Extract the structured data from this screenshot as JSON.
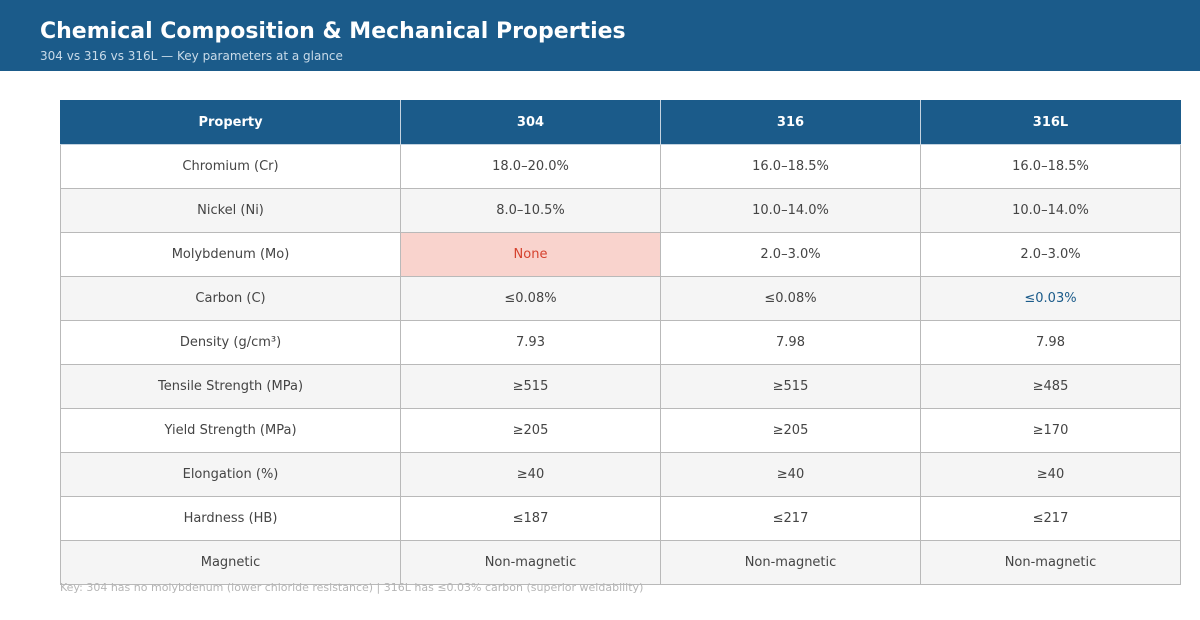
{
  "header": {
    "title": "Chemical Composition & Mechanical Properties",
    "subtitle": "304 vs 316 vs 316L — Key parameters at a glance"
  },
  "colors": {
    "header_bg": "#1b5b8a",
    "highlight_bad_bg": "#f9d3cd",
    "highlight_bad_text": "#d5422e",
    "highlight_good_bg": "#c6e4f3",
    "highlight_good_text": "#1b5b8a",
    "alt_row_bg": "#f5f5f5"
  },
  "table": {
    "columns": [
      "Property",
      "304",
      "316",
      "316L"
    ],
    "rows": [
      {
        "cells": [
          "Chromium (Cr)",
          "18.0–20.0%",
          "16.0–18.5%",
          "16.0–18.5%"
        ]
      },
      {
        "cells": [
          "Nickel (Ni)",
          "8.0–10.5%",
          "10.0–14.0%",
          "10.0–14.0%"
        ]
      },
      {
        "cells": [
          "Molybdenum (Mo)",
          "None",
          "2.0–3.0%",
          "2.0–3.0%"
        ],
        "highlight": {
          "col": 1,
          "type": "bad"
        }
      },
      {
        "cells": [
          "Carbon (C)",
          "≤0.08%",
          "≤0.08%",
          "≤0.03%"
        ],
        "highlight": {
          "col": 3,
          "type": "good"
        }
      },
      {
        "cells": [
          "Density (g/cm³)",
          "7.93",
          "7.98",
          "7.98"
        ]
      },
      {
        "cells": [
          "Tensile Strength (MPa)",
          "≥515",
          "≥515",
          "≥485"
        ]
      },
      {
        "cells": [
          "Yield Strength (MPa)",
          "≥205",
          "≥205",
          "≥170"
        ]
      },
      {
        "cells": [
          "Elongation (%)",
          "≥40",
          "≥40",
          "≥40"
        ]
      },
      {
        "cells": [
          "Hardness (HB)",
          "≤187",
          "≤217",
          "≤217"
        ]
      },
      {
        "cells": [
          "Magnetic",
          "Non-magnetic",
          "Non-magnetic",
          "Non-magnetic"
        ]
      }
    ]
  },
  "footnote": "Key: 304 has no molybdenum (lower chloride resistance) | 316L has ≤0.03% carbon (superior weldability)"
}
